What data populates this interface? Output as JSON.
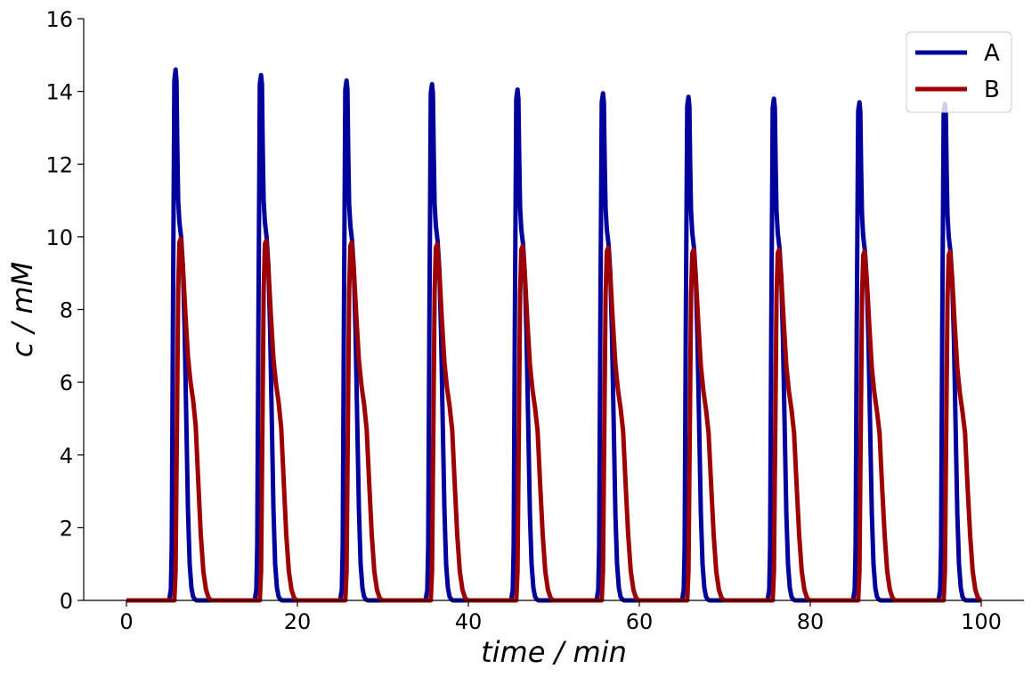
{
  "chart_data": {
    "type": "line",
    "title": "",
    "xlabel": "time / min",
    "ylabel": "c / mM",
    "xlim": [
      -5,
      105
    ],
    "ylim": [
      0,
      16
    ],
    "xticks": [
      0,
      20,
      40,
      60,
      80,
      100
    ],
    "yticks": [
      0,
      2,
      4,
      6,
      8,
      10,
      12,
      14,
      16
    ],
    "grid": false,
    "legend_position": "top-right",
    "series": [
      {
        "name": "A",
        "color": "#00009c",
        "x": [
          0,
          5.0,
          5.2,
          5.3,
          5.45,
          5.6,
          5.75,
          5.85,
          5.95,
          6.05,
          6.2,
          6.4,
          6.6,
          6.8,
          7.0,
          7.2,
          7.4,
          7.6,
          7.8,
          8.0,
          8.2,
          15.0,
          15.2,
          15.3,
          15.45,
          15.6,
          15.75,
          15.85,
          15.95,
          16.05,
          16.2,
          16.4,
          16.6,
          16.8,
          17.0,
          17.2,
          17.4,
          17.6,
          17.8,
          18.0,
          18.2,
          25.0,
          25.2,
          25.3,
          25.45,
          25.6,
          25.75,
          25.85,
          25.95,
          26.05,
          26.2,
          26.4,
          26.6,
          26.8,
          27.0,
          27.2,
          27.4,
          27.6,
          27.8,
          28.0,
          28.2,
          35.0,
          35.2,
          35.3,
          35.45,
          35.6,
          35.75,
          35.85,
          35.95,
          36.05,
          36.2,
          36.4,
          36.6,
          36.8,
          37.0,
          37.2,
          37.4,
          37.6,
          37.8,
          38.0,
          38.2,
          45.0,
          45.2,
          45.3,
          45.45,
          45.6,
          45.75,
          45.85,
          45.95,
          46.05,
          46.2,
          46.4,
          46.6,
          46.8,
          47.0,
          47.2,
          47.4,
          47.6,
          47.8,
          48.0,
          48.2,
          55.0,
          55.2,
          55.3,
          55.45,
          55.6,
          55.75,
          55.85,
          55.95,
          56.05,
          56.2,
          56.4,
          56.6,
          56.8,
          57.0,
          57.2,
          57.4,
          57.6,
          57.8,
          58.0,
          58.2,
          65.0,
          65.2,
          65.3,
          65.45,
          65.6,
          65.75,
          65.85,
          65.95,
          66.05,
          66.2,
          66.4,
          66.6,
          66.8,
          67.0,
          67.2,
          67.4,
          67.6,
          67.8,
          68.0,
          68.2,
          75.0,
          75.2,
          75.3,
          75.45,
          75.6,
          75.75,
          75.85,
          75.95,
          76.05,
          76.2,
          76.4,
          76.6,
          76.8,
          77.0,
          77.2,
          77.4,
          77.6,
          77.8,
          78.0,
          78.2,
          85.0,
          85.2,
          85.3,
          85.45,
          85.6,
          85.75,
          85.85,
          85.95,
          86.05,
          86.2,
          86.4,
          86.6,
          86.8,
          87.0,
          87.2,
          87.4,
          87.6,
          87.8,
          88.0,
          88.2,
          95.0,
          95.2,
          95.3,
          95.45,
          95.6,
          95.75,
          95.85,
          95.95,
          96.05,
          96.2,
          96.4,
          96.6,
          96.8,
          97.0,
          97.2,
          97.4,
          97.6,
          97.8,
          98.0,
          98.2,
          100
        ],
        "y": [
          0,
          0,
          0.3,
          1.5,
          8.0,
          14.3,
          14.6,
          14.3,
          12.5,
          11.0,
          10.4,
          10.0,
          9.2,
          7.5,
          5.0,
          2.5,
          1.0,
          0.35,
          0.1,
          0.03,
          0,
          0,
          0.3,
          1.5,
          8.0,
          14.2,
          14.45,
          14.2,
          12.4,
          11.0,
          10.4,
          10.0,
          9.2,
          7.5,
          5.0,
          2.5,
          1.0,
          0.35,
          0.1,
          0.03,
          0,
          0,
          0.3,
          1.5,
          8.0,
          14.05,
          14.3,
          14.05,
          12.3,
          10.9,
          10.3,
          9.9,
          9.1,
          7.4,
          4.9,
          2.5,
          1.0,
          0.35,
          0.1,
          0.03,
          0,
          0,
          0.3,
          1.5,
          8.0,
          13.95,
          14.2,
          13.95,
          12.3,
          10.9,
          10.3,
          9.9,
          9.1,
          7.4,
          4.9,
          2.5,
          1.0,
          0.35,
          0.1,
          0.03,
          0,
          0,
          0.3,
          1.5,
          8.0,
          13.8,
          14.05,
          13.8,
          12.2,
          10.8,
          10.2,
          9.8,
          9.0,
          7.3,
          4.9,
          2.4,
          1.0,
          0.35,
          0.1,
          0.03,
          0,
          0,
          0.3,
          1.5,
          8.0,
          13.7,
          13.95,
          13.7,
          12.1,
          10.8,
          10.2,
          9.8,
          9.0,
          7.3,
          4.9,
          2.4,
          1.0,
          0.35,
          0.1,
          0.03,
          0,
          0,
          0.3,
          1.5,
          8.0,
          13.6,
          13.85,
          13.6,
          12.0,
          10.7,
          10.1,
          9.7,
          8.9,
          7.2,
          4.8,
          2.4,
          1.0,
          0.35,
          0.1,
          0.03,
          0,
          0,
          0.3,
          1.5,
          8.0,
          13.55,
          13.8,
          13.55,
          12.0,
          10.7,
          10.1,
          9.7,
          8.9,
          7.2,
          4.8,
          2.4,
          1.0,
          0.35,
          0.1,
          0.03,
          0,
          0,
          0.3,
          1.5,
          8.0,
          13.45,
          13.7,
          13.45,
          11.9,
          10.6,
          10.0,
          9.6,
          8.8,
          7.2,
          4.8,
          2.4,
          1.0,
          0.35,
          0.1,
          0.03,
          0,
          0,
          0.3,
          1.5,
          8.0,
          13.4,
          13.65,
          13.4,
          11.9,
          10.6,
          10.0,
          9.6,
          8.8,
          7.2,
          4.8,
          2.4,
          1.0,
          0.35,
          0.1,
          0.03,
          0,
          0
        ]
      },
      {
        "name": "B",
        "color": "#9c0000",
        "x": [
          0,
          5.6,
          5.75,
          5.9,
          6.05,
          6.2,
          6.35,
          6.6,
          6.9,
          7.2,
          7.5,
          7.8,
          8.1,
          8.4,
          8.7,
          9.0,
          9.3,
          9.6,
          9.9,
          15.6,
          15.75,
          15.9,
          16.05,
          16.2,
          16.35,
          16.6,
          16.9,
          17.2,
          17.5,
          17.8,
          18.1,
          18.4,
          18.7,
          19.0,
          19.3,
          19.6,
          19.9,
          25.6,
          25.75,
          25.9,
          26.05,
          26.2,
          26.35,
          26.6,
          26.9,
          27.2,
          27.5,
          27.8,
          28.1,
          28.4,
          28.7,
          29.0,
          29.3,
          29.6,
          29.9,
          35.6,
          35.75,
          35.9,
          36.05,
          36.2,
          36.35,
          36.6,
          36.9,
          37.2,
          37.5,
          37.8,
          38.1,
          38.4,
          38.7,
          39.0,
          39.3,
          39.6,
          39.9,
          45.6,
          45.75,
          45.9,
          46.05,
          46.2,
          46.35,
          46.6,
          46.9,
          47.2,
          47.5,
          47.8,
          48.1,
          48.4,
          48.7,
          49.0,
          49.3,
          49.6,
          49.9,
          55.6,
          55.75,
          55.9,
          56.05,
          56.2,
          56.35,
          56.6,
          56.9,
          57.2,
          57.5,
          57.8,
          58.1,
          58.4,
          58.7,
          59.0,
          59.3,
          59.6,
          59.9,
          65.6,
          65.75,
          65.9,
          66.05,
          66.2,
          66.35,
          66.6,
          66.9,
          67.2,
          67.5,
          67.8,
          68.1,
          68.4,
          68.7,
          69.0,
          69.3,
          69.6,
          69.9,
          75.6,
          75.75,
          75.9,
          76.05,
          76.2,
          76.35,
          76.6,
          76.9,
          77.2,
          77.5,
          77.8,
          78.1,
          78.4,
          78.7,
          79.0,
          79.3,
          79.6,
          79.9,
          85.6,
          85.75,
          85.9,
          86.05,
          86.2,
          86.35,
          86.6,
          86.9,
          87.2,
          87.5,
          87.8,
          88.1,
          88.4,
          88.7,
          89.0,
          89.3,
          89.6,
          89.9,
          95.6,
          95.75,
          95.9,
          96.05,
          96.2,
          96.35,
          96.6,
          96.9,
          97.2,
          97.5,
          97.8,
          98.1,
          98.4,
          98.7,
          99.0,
          99.3,
          99.6,
          99.9,
          100
        ],
        "y": [
          0,
          0,
          0.8,
          4.5,
          8.5,
          9.85,
          9.95,
          9.2,
          7.9,
          6.7,
          6.0,
          5.5,
          4.8,
          3.3,
          1.8,
          0.8,
          0.3,
          0.08,
          0,
          0,
          0.8,
          4.5,
          8.5,
          9.8,
          9.9,
          9.15,
          7.85,
          6.65,
          5.95,
          5.45,
          4.75,
          3.3,
          1.8,
          0.8,
          0.3,
          0.08,
          0,
          0,
          0.8,
          4.5,
          8.5,
          9.75,
          9.85,
          9.1,
          7.8,
          6.6,
          5.9,
          5.4,
          4.7,
          3.25,
          1.8,
          0.8,
          0.3,
          0.08,
          0,
          0,
          0.8,
          4.5,
          8.5,
          9.7,
          9.8,
          9.05,
          7.75,
          6.55,
          5.85,
          5.35,
          4.7,
          3.25,
          1.8,
          0.8,
          0.3,
          0.08,
          0,
          0,
          0.8,
          4.5,
          8.4,
          9.65,
          9.75,
          9.0,
          7.7,
          6.5,
          5.8,
          5.3,
          4.65,
          3.2,
          1.8,
          0.8,
          0.3,
          0.08,
          0,
          0,
          0.8,
          4.5,
          8.4,
          9.6,
          9.7,
          8.95,
          7.7,
          6.5,
          5.8,
          5.3,
          4.65,
          3.2,
          1.8,
          0.8,
          0.3,
          0.08,
          0,
          0,
          0.8,
          4.5,
          8.4,
          9.55,
          9.65,
          8.9,
          7.65,
          6.45,
          5.75,
          5.25,
          4.6,
          3.2,
          1.8,
          0.8,
          0.3,
          0.08,
          0,
          0,
          0.8,
          4.5,
          8.4,
          9.55,
          9.65,
          8.9,
          7.65,
          6.45,
          5.75,
          5.25,
          4.6,
          3.2,
          1.8,
          0.8,
          0.3,
          0.08,
          0,
          0,
          0.8,
          4.5,
          8.3,
          9.5,
          9.6,
          8.85,
          7.6,
          6.4,
          5.7,
          5.2,
          4.6,
          3.15,
          1.8,
          0.8,
          0.3,
          0.08,
          0,
          0,
          0.8,
          4.5,
          8.3,
          9.5,
          9.6,
          8.85,
          7.6,
          6.4,
          5.7,
          5.2,
          4.6,
          3.15,
          1.8,
          0.8,
          0.3,
          0.08,
          0,
          0
        ]
      }
    ]
  }
}
